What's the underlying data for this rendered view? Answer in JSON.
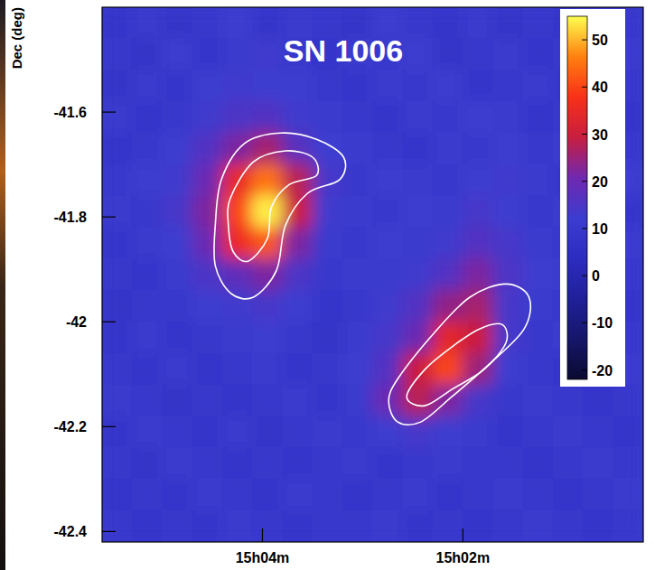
{
  "chart_data": {
    "type": "heatmap",
    "title": "SN 1006",
    "y_label": "Dec (deg)",
    "x": [
      5.45,
      5.15,
      4.85,
      4.55,
      4.25,
      3.95,
      3.65,
      3.35,
      3.05,
      2.75,
      2.45,
      2.15,
      1.85,
      1.55,
      1.25,
      0.95,
      0.65,
      0.35
    ],
    "y": [
      -41.43,
      -41.49,
      -41.55,
      -41.61,
      -41.67,
      -41.73,
      -41.79,
      -41.85,
      -41.91,
      -41.97,
      -42.03,
      -42.09,
      -42.15,
      -42.21,
      -42.27,
      -42.33,
      -42.39
    ],
    "values": [
      [
        9,
        11,
        8,
        10,
        12,
        9,
        11,
        10,
        8,
        12,
        10,
        9,
        11,
        8,
        10,
        9,
        11,
        10
      ],
      [
        10,
        8,
        12,
        9,
        11,
        13,
        10,
        9,
        11,
        10,
        12,
        8,
        10,
        11,
        9,
        10,
        8,
        11
      ],
      [
        8,
        11,
        9,
        12,
        13,
        12,
        12,
        10,
        9,
        11,
        10,
        12,
        9,
        10,
        11,
        9,
        12,
        10
      ],
      [
        11,
        9,
        10,
        13,
        15,
        16,
        13,
        11,
        10,
        9,
        11,
        10,
        12,
        11,
        9,
        10,
        11,
        9
      ],
      [
        9,
        10,
        12,
        16,
        22,
        26,
        17,
        12,
        11,
        10,
        9,
        11,
        10,
        12,
        10,
        11,
        9,
        10
      ],
      [
        10,
        12,
        13,
        20,
        35,
        45,
        28,
        14,
        10,
        12,
        11,
        10,
        12,
        13,
        11,
        9,
        10,
        12
      ],
      [
        11,
        10,
        14,
        22,
        40,
        54,
        30,
        13,
        11,
        10,
        12,
        11,
        14,
        12,
        10,
        11,
        12,
        9
      ],
      [
        9,
        11,
        12,
        20,
        36,
        42,
        22,
        11,
        10,
        12,
        11,
        13,
        16,
        14,
        11,
        10,
        9,
        11
      ],
      [
        10,
        9,
        11,
        15,
        18,
        22,
        15,
        10,
        11,
        11,
        13,
        16,
        22,
        15,
        12,
        11,
        10,
        10
      ],
      [
        8,
        10,
        10,
        12,
        13,
        14,
        12,
        9,
        10,
        13,
        16,
        24,
        26,
        14,
        11,
        10,
        11,
        9
      ],
      [
        9,
        11,
        9,
        10,
        11,
        12,
        10,
        8,
        11,
        14,
        20,
        34,
        30,
        14,
        10,
        11,
        9,
        10
      ],
      [
        10,
        9,
        11,
        9,
        10,
        11,
        9,
        10,
        12,
        16,
        30,
        40,
        25,
        12,
        10,
        9,
        10,
        11
      ],
      [
        11,
        10,
        8,
        10,
        9,
        10,
        11,
        9,
        11,
        20,
        28,
        22,
        14,
        10,
        11,
        10,
        9,
        10
      ],
      [
        9,
        11,
        10,
        9,
        11,
        8,
        10,
        11,
        10,
        12,
        14,
        12,
        11,
        9,
        10,
        11,
        10,
        9
      ],
      [
        10,
        8,
        11,
        10,
        9,
        10,
        9,
        10,
        11,
        9,
        10,
        11,
        10,
        10,
        9,
        10,
        11,
        10
      ],
      [
        9,
        10,
        9,
        11,
        10,
        9,
        11,
        10,
        9,
        10,
        11,
        9,
        10,
        11,
        10,
        9,
        10,
        11
      ],
      [
        10,
        9,
        10,
        9,
        11,
        10,
        9,
        10,
        10,
        11,
        9,
        10,
        9,
        10,
        11,
        10,
        9,
        10
      ]
    ],
    "xlim": [
      5.6,
      0.2
    ],
    "ylim": [
      -42.42,
      -41.4
    ],
    "xticks": [
      {
        "value": 4,
        "label": "15h04m"
      },
      {
        "value": 2,
        "label": "15h02m"
      }
    ],
    "yticks": [
      -41.6,
      -41.8,
      -42,
      -42.2,
      -42.4
    ],
    "colorbar": {
      "range": [
        -22,
        55
      ],
      "ticks": [
        -20,
        -10,
        0,
        10,
        20,
        30,
        40,
        50
      ],
      "colors": [
        "#0a0a30",
        "#16166a",
        "#20209a",
        "#2c2cc0",
        "#3c3cd0",
        "#7028b0",
        "#c81e40",
        "#f83018",
        "#ff8010",
        "#ffff50"
      ]
    },
    "contours": [
      [
        [
          4.41,
          -41.729
        ],
        [
          4.18,
          -41.66
        ],
        [
          3.82,
          -41.64
        ],
        [
          3.46,
          -41.652
        ],
        [
          3.19,
          -41.686
        ],
        [
          3.23,
          -41.729
        ],
        [
          3.55,
          -41.755
        ],
        [
          3.77,
          -41.816
        ],
        [
          3.86,
          -41.902
        ],
        [
          4.09,
          -41.953
        ],
        [
          4.32,
          -41.945
        ],
        [
          4.47,
          -41.893
        ],
        [
          4.47,
          -41.816
        ]
      ],
      [
        [
          4.32,
          -41.764
        ],
        [
          4.09,
          -41.695
        ],
        [
          3.77,
          -41.674
        ],
        [
          3.5,
          -41.686
        ],
        [
          3.46,
          -41.721
        ],
        [
          3.73,
          -41.738
        ],
        [
          3.91,
          -41.781
        ],
        [
          3.95,
          -41.841
        ],
        [
          4.14,
          -41.884
        ],
        [
          4.29,
          -41.867
        ],
        [
          4.34,
          -41.816
        ]
      ],
      [
        [
          2.74,
          -42.152
        ],
        [
          2.65,
          -42.109
        ],
        [
          2.29,
          -42.022
        ],
        [
          1.93,
          -41.953
        ],
        [
          1.57,
          -41.928
        ],
        [
          1.34,
          -41.953
        ],
        [
          1.39,
          -42.014
        ],
        [
          1.75,
          -42.083
        ],
        [
          2.11,
          -42.143
        ],
        [
          2.42,
          -42.191
        ],
        [
          2.65,
          -42.191
        ]
      ],
      [
        [
          2.56,
          -42.143
        ],
        [
          2.38,
          -42.091
        ],
        [
          2.11,
          -42.048
        ],
        [
          1.84,
          -42.014
        ],
        [
          1.61,
          -42.005
        ],
        [
          1.57,
          -42.04
        ],
        [
          1.79,
          -42.091
        ],
        [
          2.11,
          -42.129
        ],
        [
          2.38,
          -42.16
        ]
      ]
    ]
  }
}
